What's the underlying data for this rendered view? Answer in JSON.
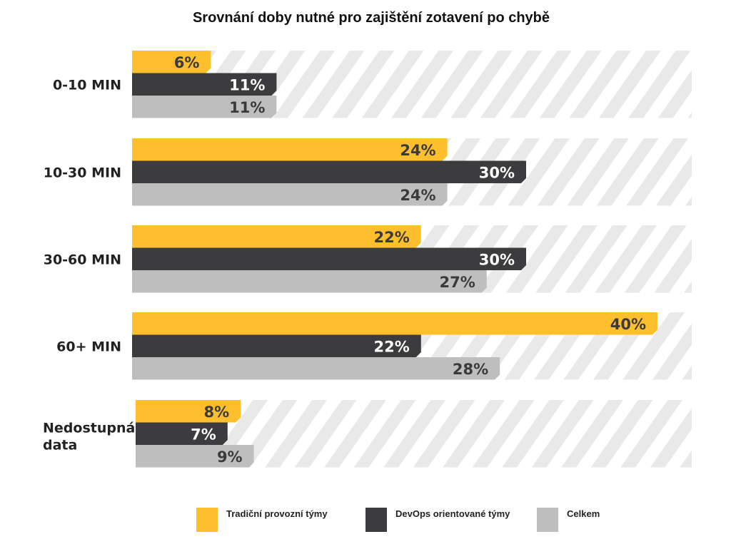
{
  "chart_data": {
    "type": "bar",
    "orientation": "horizontal",
    "title": "Srovnání doby nutné pro zajištění zotavení po chybě",
    "categories": [
      "0-10 MIN",
      "10-30 MIN",
      "30-60 MIN",
      "60+ MIN",
      "Nedostupná data"
    ],
    "series": [
      {
        "name": "Tradiční provozní týmy",
        "values": [
          6,
          24,
          22,
          40,
          8
        ],
        "color": "#FDBF2D",
        "label_color": "#3A3A3A"
      },
      {
        "name": "DevOps orientované týmy",
        "values": [
          11,
          30,
          30,
          22,
          7
        ],
        "color": "#3C3C3E",
        "label_color": "#FFFFFF"
      },
      {
        "name": "Celkem",
        "values": [
          11,
          24,
          27,
          28,
          9
        ],
        "color": "#BEBEBE",
        "label_color": "#3A3A3A"
      }
    ],
    "value_suffix": "%",
    "xlim": [
      0,
      43
    ],
    "grid": false,
    "background_pattern": "diagonal-stripes",
    "legend_position": "bottom"
  }
}
